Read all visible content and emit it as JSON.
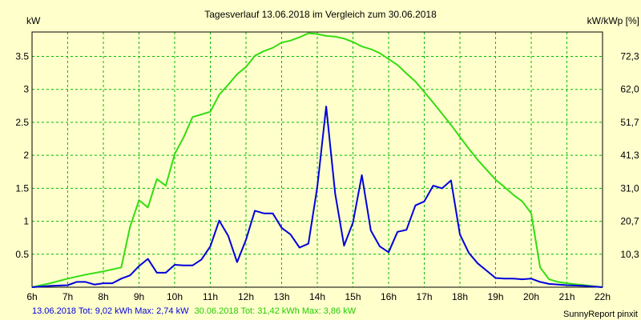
{
  "chart_data": {
    "type": "line",
    "title": "Tagesverlauf 13.06.2018 im Vergleich zum 30.06.2018",
    "y_left_label": "kW",
    "y_right_label": "kW/kWp [%]",
    "x_ticks": [
      "6h",
      "7h",
      "8h",
      "9h",
      "10h",
      "11h",
      "12h",
      "13h",
      "14h",
      "15h",
      "16h",
      "17h",
      "18h",
      "19h",
      "20h",
      "21h",
      "22h"
    ],
    "y_left_ticks": [
      "0.5",
      "1",
      "1.5",
      "2",
      "2.5",
      "3",
      "3.5"
    ],
    "y_right_ticks": [
      "10,3",
      "20,7",
      "31,0",
      "41,3",
      "51,7",
      "62,0",
      "72,3"
    ],
    "x_range": [
      6,
      22
    ],
    "y_range": [
      0,
      3.87
    ],
    "grid": true,
    "series": [
      {
        "color": "#0000dd",
        "x": [
          6.0,
          6.5,
          7.0,
          7.25,
          7.5,
          7.75,
          8.0,
          8.25,
          8.5,
          8.75,
          9.0,
          9.25,
          9.5,
          9.75,
          10.0,
          10.25,
          10.5,
          10.75,
          11.0,
          11.25,
          11.5,
          11.75,
          12.0,
          12.25,
          12.5,
          12.75,
          13.0,
          13.25,
          13.5,
          13.75,
          14.0,
          14.25,
          14.5,
          14.75,
          15.0,
          15.25,
          15.5,
          15.75,
          16.0,
          16.25,
          16.5,
          16.75,
          17.0,
          17.25,
          17.5,
          17.75,
          18.0,
          18.25,
          18.5,
          18.75,
          19.0,
          19.25,
          19.5,
          19.75,
          20.0,
          20.25,
          20.5,
          21.0,
          21.5,
          22.0
        ],
        "y": [
          0.0,
          0.02,
          0.03,
          0.08,
          0.08,
          0.04,
          0.06,
          0.06,
          0.13,
          0.18,
          0.32,
          0.43,
          0.22,
          0.22,
          0.34,
          0.33,
          0.33,
          0.42,
          0.62,
          1.01,
          0.78,
          0.38,
          0.72,
          1.16,
          1.12,
          1.12,
          0.9,
          0.8,
          0.6,
          0.66,
          1.52,
          2.74,
          1.42,
          0.63,
          0.98,
          1.7,
          0.86,
          0.62,
          0.53,
          0.84,
          0.87,
          1.24,
          1.3,
          1.54,
          1.5,
          1.62,
          0.8,
          0.52,
          0.36,
          0.25,
          0.14,
          0.13,
          0.13,
          0.12,
          0.13,
          0.08,
          0.05,
          0.03,
          0.02,
          0.0
        ]
      },
      {
        "color": "#33dd11",
        "x": [
          6.0,
          6.5,
          7.0,
          7.5,
          8.0,
          8.5,
          8.75,
          9.0,
          9.25,
          9.5,
          9.75,
          10.0,
          10.25,
          10.5,
          11.0,
          11.25,
          11.5,
          11.75,
          12.0,
          12.25,
          12.5,
          12.75,
          13.0,
          13.25,
          13.5,
          13.75,
          14.0,
          14.25,
          14.5,
          14.75,
          15.0,
          15.25,
          15.5,
          15.75,
          16.0,
          16.25,
          16.5,
          16.75,
          17.0,
          17.25,
          17.5,
          17.75,
          18.0,
          18.25,
          18.5,
          18.75,
          19.0,
          19.25,
          19.5,
          19.75,
          20.0,
          20.25,
          20.5,
          20.75,
          21.0,
          21.5,
          22.0
        ],
        "y": [
          0.0,
          0.06,
          0.13,
          0.19,
          0.24,
          0.3,
          0.92,
          1.32,
          1.21,
          1.64,
          1.54,
          2.02,
          2.27,
          2.58,
          2.66,
          2.92,
          3.07,
          3.23,
          3.34,
          3.51,
          3.58,
          3.63,
          3.71,
          3.74,
          3.79,
          3.85,
          3.84,
          3.81,
          3.8,
          3.77,
          3.72,
          3.65,
          3.61,
          3.55,
          3.46,
          3.37,
          3.24,
          3.12,
          2.96,
          2.8,
          2.63,
          2.46,
          2.28,
          2.1,
          1.93,
          1.78,
          1.63,
          1.52,
          1.4,
          1.3,
          1.12,
          0.3,
          0.12,
          0.08,
          0.06,
          0.03,
          0.0
        ]
      }
    ]
  },
  "footer": {
    "blue_text": "13.06.2018 Tot: 9,02 kWh Max: 2,74 kW",
    "green_text": "30.06.2018 Tot: 31,42 kWh Max: 3,86 kW",
    "credit": "SunnyReport pinxit"
  }
}
